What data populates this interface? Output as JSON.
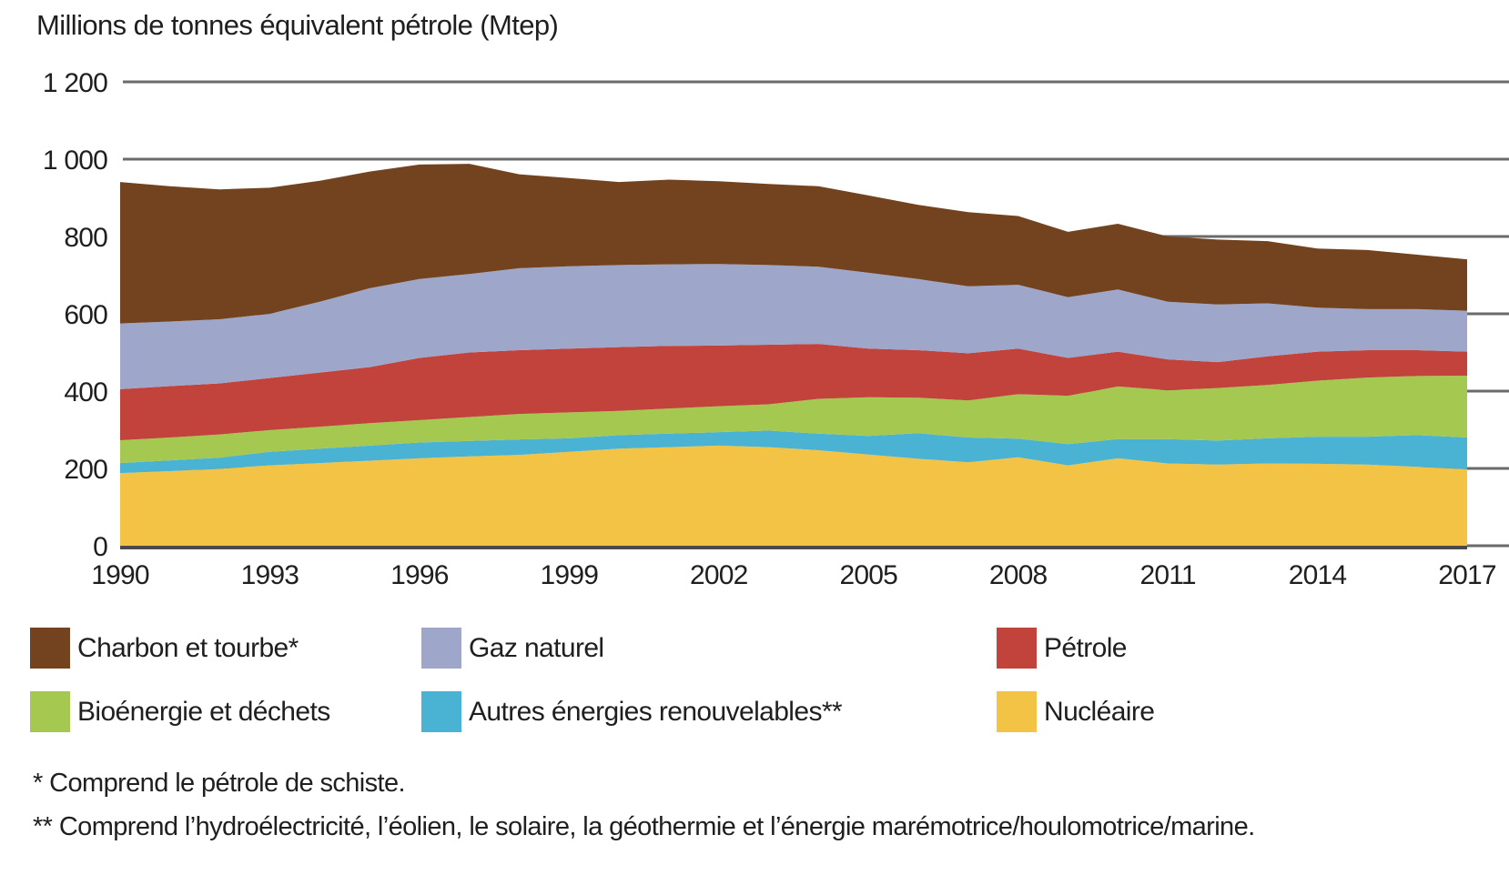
{
  "title": "Millions de tonnes équivalent pétrole (Mtep)",
  "colors": {
    "background": "#ffffff",
    "text": "#1f1f1f",
    "grid": "#6a6a6a",
    "axis": "#4a4a4a",
    "charbon": "#73431F",
    "gaz": "#9EA6C9",
    "petrole": "#C2423C",
    "bioenergie": "#A4C850",
    "autres_renouvelables": "#4AB2D2",
    "nucleaire": "#F2C345"
  },
  "chart_data": {
    "type": "area",
    "stacked": true,
    "title": "Millions de tonnes équivalent pétrole (Mtep)",
    "xlabel": "",
    "ylabel": "Millions de tonnes équivalent pétrole (Mtep)",
    "ylim": [
      0,
      1200
    ],
    "grid": "horizontal",
    "legend_position": "below",
    "x": [
      1990,
      1991,
      1992,
      1993,
      1994,
      1995,
      1996,
      1997,
      1998,
      1999,
      2000,
      2001,
      2002,
      2003,
      2004,
      2005,
      2006,
      2007,
      2008,
      2009,
      2010,
      2011,
      2012,
      2013,
      2014,
      2015,
      2016,
      2017
    ],
    "x_ticks": [
      {
        "year": 1990,
        "label": "1990"
      },
      {
        "year": 1993,
        "label": "1993"
      },
      {
        "year": 1996,
        "label": "1996"
      },
      {
        "year": 1999,
        "label": "1999"
      },
      {
        "year": 2002,
        "label": "2002"
      },
      {
        "year": 2005,
        "label": "2005"
      },
      {
        "year": 2008,
        "label": "2008"
      },
      {
        "year": 2011,
        "label": "2011"
      },
      {
        "year": 2014,
        "label": "2014"
      },
      {
        "year": 2017,
        "label": "2017"
      }
    ],
    "y_ticks": [
      {
        "value": 0,
        "label": "0"
      },
      {
        "value": 200,
        "label": "200"
      },
      {
        "value": 400,
        "label": "400"
      },
      {
        "value": 600,
        "label": "600"
      },
      {
        "value": 800,
        "label": "800"
      },
      {
        "value": 1000,
        "label": "1 000"
      },
      {
        "value": 1200,
        "label": "1 200"
      }
    ],
    "series": [
      {
        "name": "Nucléaire",
        "color": "#F2C345",
        "values": [
          188,
          193,
          199,
          208,
          214,
          220,
          226,
          231,
          235,
          243,
          251,
          255,
          259,
          255,
          247,
          236,
          225,
          216,
          229,
          208,
          226,
          213,
          210,
          213,
          212,
          210,
          204,
          198
        ]
      },
      {
        "name": "Autres énergies renouvelables**",
        "color": "#4AB2D2",
        "values": [
          26,
          28,
          29,
          35,
          37,
          39,
          41,
          40,
          40,
          35,
          35,
          35,
          35,
          43,
          43,
          48,
          66,
          64,
          48,
          55,
          50,
          63,
          62,
          65,
          70,
          72,
          82,
          82
        ]
      },
      {
        "name": "Bioénergie et déchets",
        "color": "#A4C850",
        "values": [
          59,
          59,
          60,
          56,
          57,
          58,
          58,
          62,
          66,
          67,
          63,
          65,
          67,
          68,
          90,
          100,
          92,
          96,
          115,
          125,
          136,
          126,
          136,
          138,
          145,
          153,
          153,
          160
        ]
      },
      {
        "name": "Pétrole",
        "color": "#C2423C",
        "values": [
          132,
          133,
          132,
          135,
          140,
          145,
          161,
          167,
          165,
          165,
          165,
          162,
          157,
          154,
          142,
          126,
          123,
          122,
          118,
          98,
          90,
          80,
          67,
          74,
          75,
          71,
          67,
          62
        ]
      },
      {
        "name": "Gaz naturel",
        "color": "#9EA6C9",
        "values": [
          170,
          167,
          166,
          166,
          183,
          204,
          204,
          203,
          212,
          213,
          212,
          211,
          211,
          206,
          200,
          196,
          184,
          173,
          165,
          157,
          161,
          149,
          149,
          137,
          114,
          106,
          106,
          106
        ]
      },
      {
        "name": "Charbon et tourbe*",
        "color": "#73431F",
        "values": [
          366,
          350,
          336,
          326,
          313,
          302,
          296,
          285,
          243,
          228,
          215,
          219,
          214,
          210,
          208,
          200,
          192,
          192,
          178,
          169,
          170,
          169,
          168,
          161,
          153,
          153,
          141,
          133
        ]
      }
    ]
  },
  "legend": {
    "items": [
      {
        "label": "Charbon et tourbe*",
        "color": "#73431F"
      },
      {
        "label": "Gaz naturel",
        "color": "#9EA6C9"
      },
      {
        "label": "Pétrole",
        "color": "#C2423C"
      },
      {
        "label": "Bioénergie et déchets",
        "color": "#A4C850"
      },
      {
        "label": "Autres énergies renouvelables**",
        "color": "#4AB2D2"
      },
      {
        "label": "Nucléaire",
        "color": "#F2C345"
      }
    ]
  },
  "footnotes": {
    "note1": "* Comprend le pétrole de schiste.",
    "note2": "** Comprend l’hydroélectricité, l’éolien, le solaire, la géothermie et l’énergie marémotrice/houlomotrice/marine."
  }
}
